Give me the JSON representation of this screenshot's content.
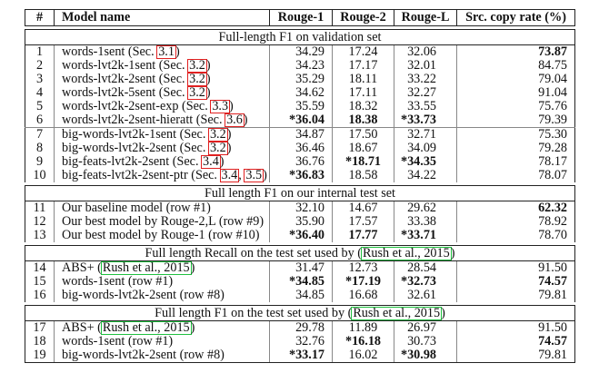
{
  "table": {
    "headers": [
      "#",
      "Model name",
      "Rouge-1",
      "Rouge-2",
      "Rouge-L",
      "Src. copy rate (%)"
    ],
    "sections": [
      {
        "title": "Full-length F1 on validation set",
        "groups": [
          [
            {
              "num": "1",
              "model": "words-1sent (Sec. ",
              "refs": [
                "3.1"
              ],
              "suffix": ")",
              "r1": "34.29",
              "r2": "17.24",
              "rl": "32.06",
              "src": "73.87",
              "bold": [
                "src"
              ]
            },
            {
              "num": "2",
              "model": "words-lvt2k-1sent (Sec. ",
              "refs": [
                "3.2"
              ],
              "suffix": ")",
              "r1": "34.23",
              "r2": "17.17",
              "rl": "32.01",
              "src": "84.75",
              "bold": []
            },
            {
              "num": "3",
              "model": "words-lvt2k-2sent (Sec. ",
              "refs": [
                "3.2"
              ],
              "suffix": ")",
              "r1": "35.29",
              "r2": "18.11",
              "rl": "33.22",
              "src": "79.04",
              "bold": []
            },
            {
              "num": "4",
              "model": "words-lvt2k-5sent (Sec. ",
              "refs": [
                "3.2"
              ],
              "suffix": ")",
              "r1": "34.62",
              "r2": "17.11",
              "rl": "32.27",
              "src": "91.04",
              "bold": []
            },
            {
              "num": "5",
              "model": "words-lvt2k-2sent-exp (Sec. ",
              "refs": [
                "3.3"
              ],
              "suffix": ")",
              "r1": "35.59",
              "r2": "18.32",
              "rl": "33.55",
              "src": "75.76",
              "bold": []
            },
            {
              "num": "6",
              "model": "words-lvt2k-2sent-hieratt (Sec. ",
              "refs": [
                "3.6"
              ],
              "suffix": ")",
              "r1": "*36.04",
              "r2": "18.38",
              "rl": "*33.73",
              "src": "79.39",
              "bold": [
                "r1",
                "r2",
                "rl"
              ]
            }
          ],
          [
            {
              "num": "7",
              "model": "big-words-lvt2k-1sent (Sec. ",
              "refs": [
                "3.2"
              ],
              "suffix": ")",
              "r1": "34.87",
              "r2": "17.50",
              "rl": "32.71",
              "src": "75.30",
              "bold": []
            },
            {
              "num": "8",
              "model": "big-words-lvt2k-2sent (Sec. ",
              "refs": [
                "3.2"
              ],
              "suffix": ")",
              "r1": "36.46",
              "r2": "18.67",
              "rl": "34.09",
              "src": "79.28",
              "bold": []
            },
            {
              "num": "9",
              "model": "big-feats-lvt2k-2sent (Sec. ",
              "refs": [
                "3.4"
              ],
              "suffix": ")",
              "r1": "36.76",
              "r2": "*18.71",
              "rl": "*34.35",
              "src": "78.17",
              "bold": [
                "r2",
                "rl"
              ]
            },
            {
              "num": "10",
              "model": "big-feats-lvt2k-2sent-ptr (Sec. ",
              "refs": [
                "3.4",
                "3.5"
              ],
              "suffix": ")",
              "r1": "*36.83",
              "r2": "18.58",
              "rl": "34.22",
              "src": "78.07",
              "bold": [
                "r1"
              ]
            }
          ]
        ]
      },
      {
        "title": "Full length F1 on our internal test set",
        "groups": [
          [
            {
              "num": "11",
              "model": "Our baseline model (row #1)",
              "refs": [],
              "suffix": "",
              "r1": "32.10",
              "r2": "14.67",
              "rl": "29.62",
              "src": "62.32",
              "bold": [
                "src"
              ]
            },
            {
              "num": "12",
              "model": "Our best model by Rouge-2,L (row #9)",
              "refs": [],
              "suffix": "",
              "r1": "35.90",
              "r2": "17.57",
              "rl": "33.38",
              "src": "78.92",
              "bold": []
            },
            {
              "num": "13",
              "model": "Our best model by Rouge-1 (row #10)",
              "refs": [],
              "suffix": "",
              "r1": "*36.40",
              "r2": "17.77",
              "rl": "*33.71",
              "src": "78.70",
              "bold": [
                "r1",
                "r2",
                "rl"
              ]
            }
          ]
        ]
      },
      {
        "title": "Full length Recall on the test set used by ",
        "title_ref": "Rush et al., 2015",
        "title_suffix": ")",
        "title_prefix_paren": "(",
        "groups": [
          [
            {
              "num": "14",
              "model": "ABS+ (",
              "refs": [
                "Rush et al., 2015"
              ],
              "suffix": ")",
              "ref_color": "green",
              "r1": "31.47",
              "r2": "12.73",
              "rl": "28.54",
              "src": "91.50",
              "bold": []
            },
            {
              "num": "15",
              "model": "words-1sent (row #1)",
              "refs": [],
              "suffix": "",
              "r1": "*34.85",
              "r2": "*17.19",
              "rl": "*32.73",
              "src": "74.57",
              "bold": [
                "r1",
                "r2",
                "rl",
                "src"
              ]
            },
            {
              "num": "16",
              "model": "big-words-lvt2k-2sent (row #8)",
              "refs": [],
              "suffix": "",
              "r1": "34.85",
              "r2": "16.68",
              "rl": "32.61",
              "src": "79.81",
              "bold": []
            }
          ]
        ]
      },
      {
        "title": "Full length F1 on the test set used by ",
        "title_ref": "Rush et al., 2015",
        "title_suffix": ")",
        "title_prefix_paren": "(",
        "groups": [
          [
            {
              "num": "17",
              "model": "ABS+ (",
              "refs": [
                "Rush et al., 2015"
              ],
              "suffix": ")",
              "ref_color": "green",
              "r1": "29.78",
              "r2": "11.89",
              "rl": "26.97",
              "src": "91.50",
              "bold": []
            },
            {
              "num": "18",
              "model": "words-1sent (row #1)",
              "refs": [],
              "suffix": "",
              "r1": "32.76",
              "r2": "*16.18",
              "rl": "30.73",
              "src": "74.57",
              "bold": [
                "r2",
                "src"
              ]
            },
            {
              "num": "19",
              "model": "big-words-lvt2k-2sent (row #8)",
              "refs": [],
              "suffix": "",
              "r1": "*33.17",
              "r2": "16.02",
              "rl": "*30.98",
              "src": "79.81",
              "bold": [
                "r1",
                "rl"
              ]
            }
          ]
        ]
      }
    ]
  },
  "colors": {
    "section_ref_box": "#e02020",
    "citation_box": "#20c040",
    "rule": "#222222",
    "inner_rule": "#888888"
  }
}
